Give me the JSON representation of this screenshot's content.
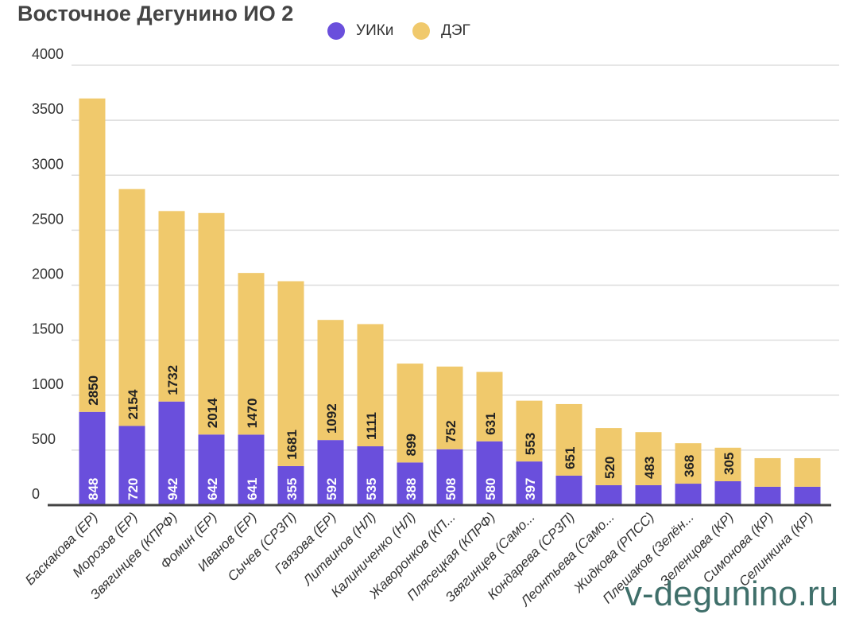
{
  "chart_data": {
    "type": "bar",
    "stacked": true,
    "title": "Восточное Дегунино ИО 2",
    "xlabel": "",
    "ylabel": "",
    "ylim": [
      0,
      4000
    ],
    "yticks": [
      0,
      500,
      1000,
      1500,
      2000,
      2500,
      3000,
      3500,
      4000
    ],
    "grid": true,
    "legend_position": "top",
    "categories": [
      "Баскакова (ЕР)",
      "Морозов (ЕР)",
      "Звягинцев (КПРФ)",
      "Фомин (ЕР)",
      "Иванов (ЕР)",
      "Сычев (СРЗП)",
      "Гаязова (ЕР)",
      "Литвинов (НЛ)",
      "Калиниченко (НЛ)",
      "Жаворонков (КП...",
      "Плясецкая (КПРФ)",
      "Звягинцев (Само...",
      "Кондарева (СРЗП)",
      "Леонтьева (Само...",
      "Жидкова (РПСС)",
      "Плешаков (Зелён...",
      "Зеленцова (КР)",
      "Симонова (КР)",
      "Селинкина (КР)"
    ],
    "series": [
      {
        "name": "УИКи",
        "color": "#6a4fdc",
        "values": [
          848,
          720,
          942,
          642,
          641,
          355,
          592,
          535,
          388,
          508,
          580,
          397,
          268,
          181,
          181,
          195,
          217,
          167,
          167
        ],
        "labels": [
          "848",
          "720",
          "942",
          "642",
          "641",
          "355",
          "592",
          "535",
          "388",
          "508",
          "580",
          "397",
          "",
          "",
          "",
          "",
          "",
          "",
          ""
        ]
      },
      {
        "name": "ДЭГ",
        "color": "#f0c96c",
        "values": [
          2850,
          2154,
          1732,
          2014,
          1470,
          1681,
          1092,
          1111,
          899,
          752,
          631,
          553,
          651,
          520,
          483,
          368,
          305,
          260,
          260
        ],
        "labels": [
          "2850",
          "2154",
          "1732",
          "2014",
          "1470",
          "1681",
          "1092",
          "1111",
          "899",
          "752",
          "631",
          "553",
          "651",
          "520",
          "483",
          "368",
          "305",
          "",
          ""
        ]
      }
    ]
  },
  "watermark": "v-degunino.ru"
}
